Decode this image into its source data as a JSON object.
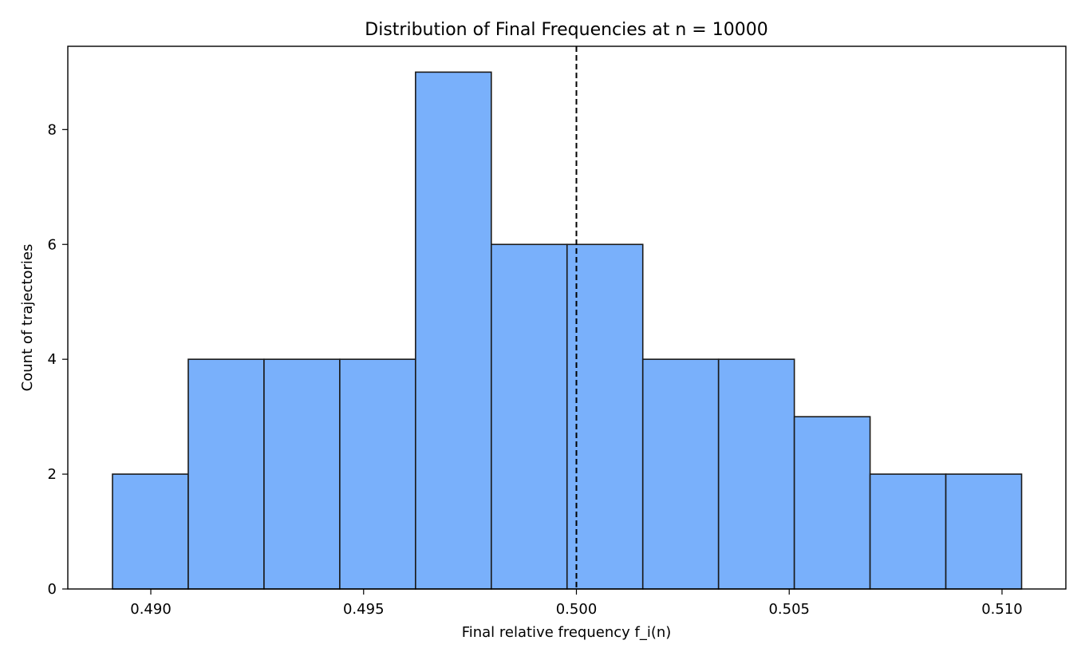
{
  "chart_data": {
    "type": "bar",
    "title": "Distribution of Final Frequencies at n = 10000",
    "xlabel": "Final relative frequency f_i(n)",
    "ylabel": "Count of trajectories",
    "bin_edges": [
      0.4891,
      0.49088,
      0.49266,
      0.49444,
      0.49622,
      0.498,
      0.49978,
      0.50156,
      0.50334,
      0.50512,
      0.5069,
      0.50868,
      0.51046
    ],
    "values": [
      2,
      4,
      4,
      4,
      9,
      6,
      6,
      4,
      4,
      3,
      2,
      2
    ],
    "xlim": [
      0.48805,
      0.5115
    ],
    "ylim": [
      0,
      9.45
    ],
    "x_ticks": [
      0.49,
      0.495,
      0.5,
      0.505,
      0.51
    ],
    "x_tick_labels": [
      "0.490",
      "0.495",
      "0.500",
      "0.505",
      "0.510"
    ],
    "y_ticks": [
      0,
      2,
      4,
      6,
      8
    ],
    "y_tick_labels": [
      "0",
      "2",
      "4",
      "6",
      "8"
    ],
    "reference_line": {
      "x": 0.5,
      "style": "dashed"
    },
    "bar_color": "#79b0fb",
    "edge_color": "#1a1a1a",
    "grid": false
  }
}
